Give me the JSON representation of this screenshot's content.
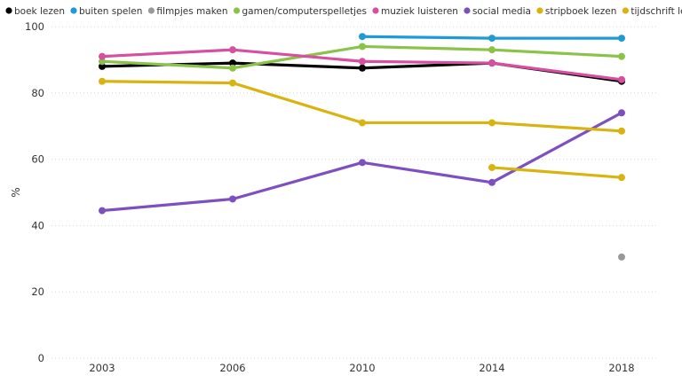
{
  "chart_data": {
    "type": "line",
    "x": [
      "2003",
      "2006",
      "2010",
      "2014",
      "2018"
    ],
    "ylabel": "%",
    "ylim": [
      0,
      100
    ],
    "yticks": [
      0,
      20,
      40,
      60,
      80,
      100
    ],
    "grid": true,
    "legend_position": "top-left",
    "series": [
      {
        "name": "boek lezen",
        "color": "#000000",
        "values": [
          88,
          89,
          87.5,
          89,
          83.5
        ]
      },
      {
        "name": "buiten spelen",
        "color": "#1f9ad6",
        "values": [
          null,
          null,
          97,
          96.5,
          96.5
        ]
      },
      {
        "name": "filmpjes maken",
        "color": "#999999",
        "values": [
          null,
          null,
          null,
          null,
          30.5
        ]
      },
      {
        "name": "gamen/computerspelletjes",
        "color": "#8bc34a",
        "values": [
          89.5,
          87.5,
          94,
          93,
          91
        ]
      },
      {
        "name": "muziek luisteren",
        "color": "#d64fa0",
        "values": [
          91,
          93,
          89.5,
          89,
          84
        ]
      },
      {
        "name": "social media",
        "color": "#7e4fbf",
        "values": [
          44.5,
          48,
          59,
          53,
          74
        ]
      },
      {
        "name": "stripboek lezen",
        "color": "#d9b310",
        "values": [
          83.5,
          83,
          71,
          71,
          68.5
        ]
      },
      {
        "name": "tijdschrift lezen",
        "color": "#d9b310",
        "values": [
          null,
          null,
          null,
          57.5,
          54.5
        ]
      }
    ]
  }
}
